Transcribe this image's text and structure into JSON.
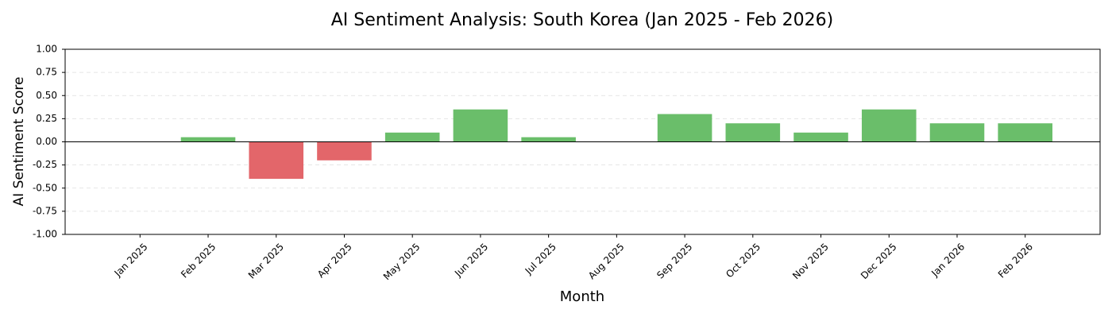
{
  "chart_data": {
    "type": "bar",
    "title": "AI Sentiment Analysis: South Korea (Jan 2025 - Feb 2026)",
    "x_label": "Month",
    "y_label": "AI Sentiment Score",
    "categories": [
      "Jan 2025",
      "Feb 2025",
      "Mar 2025",
      "Apr 2025",
      "May 2025",
      "Jun 2025",
      "Jul 2025",
      "Aug 2025",
      "Sep 2025",
      "Oct 2025",
      "Nov 2025",
      "Dec 2025",
      "Jan 2026",
      "Feb 2026"
    ],
    "values": [
      0,
      0.05,
      -0.4,
      -0.2,
      0.1,
      0.35,
      0.05,
      0,
      0.3,
      0.2,
      0.1,
      0.35,
      0.2,
      0.2
    ],
    "colors": [
      "#6abe6a",
      "#6abe6a",
      "#e3666a",
      "#e3666a",
      "#6abe6a",
      "#6abe6a",
      "#6abe6a",
      "#6abe6a",
      "#6abe6a",
      "#6abe6a",
      "#6abe6a",
      "#6abe6a",
      "#6abe6a",
      "#6abe6a"
    ],
    "ylim": [
      -1,
      1
    ],
    "yticks": [
      {
        "value": -1,
        "label": "-1.00"
      },
      {
        "value": -0.75,
        "label": "-0.75"
      },
      {
        "value": -0.5,
        "label": "-0.50"
      },
      {
        "value": -0.25,
        "label": "-0.25"
      },
      {
        "value": 0,
        "label": "0.00"
      },
      {
        "value": 0.25,
        "label": "0.25"
      },
      {
        "value": 0.5,
        "label": "0.50"
      },
      {
        "value": 0.75,
        "label": "0.75"
      },
      {
        "value": 1,
        "label": "1.00"
      }
    ],
    "grid": true
  }
}
